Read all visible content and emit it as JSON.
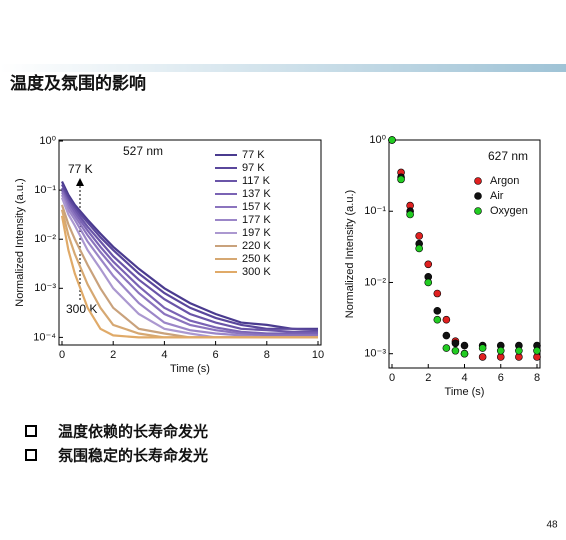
{
  "title": "温度及氛围的影响",
  "bullets": [
    "温度依赖的长寿命发光",
    "氛围稳定的长寿命发光"
  ],
  "page_number": "48",
  "chart_data": [
    {
      "type": "line",
      "log_y": true,
      "x_label": "Time (s)",
      "y_label": "Normalized Intensity (a.u.)",
      "annotations": [
        "527 nm",
        "77 K",
        "300 K"
      ],
      "x": [
        0,
        0.25,
        0.5,
        1,
        1.5,
        2,
        3,
        4,
        5,
        6,
        7,
        8,
        9,
        10
      ],
      "xlim": [
        0,
        10
      ],
      "xticks": [
        0,
        2,
        4,
        6,
        8,
        10
      ],
      "ylim": [
        7e-05,
        1.05
      ],
      "yticks": [
        {
          "value": 1,
          "label": "10⁰"
        },
        {
          "value": 0.1,
          "label": "10⁻¹"
        },
        {
          "value": 0.01,
          "label": "10⁻²"
        },
        {
          "value": 0.001,
          "label": "10⁻³"
        },
        {
          "value": 0.0001,
          "label": "10⁻⁴"
        }
      ],
      "series": [
        {
          "name": "77 K",
          "color": "#4a3b8f",
          "values": [
            0.15,
            0.08,
            0.05,
            0.025,
            0.013,
            0.007,
            0.0025,
            0.001,
            0.0005,
            0.0003,
            0.0002,
            0.00018,
            0.00015,
            0.00015
          ]
        },
        {
          "name": "97 K",
          "color": "#5a479c",
          "values": [
            0.13,
            0.07,
            0.045,
            0.022,
            0.011,
            0.006,
            0.002,
            0.0008,
            0.0004,
            0.00025,
            0.00018,
            0.00015,
            0.00015,
            0.00014
          ]
        },
        {
          "name": "117 K",
          "color": "#6a55a8",
          "values": [
            0.11,
            0.06,
            0.04,
            0.018,
            0.009,
            0.0045,
            0.0015,
            0.0006,
            0.0003,
            0.0002,
            0.00015,
            0.00014,
            0.00013,
            0.00013
          ]
        },
        {
          "name": "137 K",
          "color": "#7a63b4",
          "values": [
            0.1,
            0.055,
            0.035,
            0.015,
            0.007,
            0.0035,
            0.0011,
            0.0004,
            0.00022,
            0.00016,
            0.00013,
            0.00012,
            0.00012,
            0.00012
          ]
        },
        {
          "name": "157 K",
          "color": "#8b74be",
          "values": [
            0.09,
            0.048,
            0.03,
            0.012,
            0.0055,
            0.0027,
            0.0008,
            0.0003,
            0.00018,
            0.00014,
            0.00012,
            0.00011,
            0.00011,
            0.00011
          ]
        },
        {
          "name": "177 K",
          "color": "#9b86c8",
          "values": [
            0.08,
            0.04,
            0.025,
            0.009,
            0.004,
            0.0018,
            0.0005,
            0.0002,
            0.00014,
            0.00012,
            0.00011,
            0.0001,
            0.0001,
            0.0001
          ]
        },
        {
          "name": "197 K",
          "color": "#ab98d0",
          "values": [
            0.07,
            0.032,
            0.019,
            0.006,
            0.0025,
            0.001,
            0.0003,
            0.00015,
            0.00012,
            0.0001,
            0.0001,
            0.0001,
            0.0001,
            0.0001
          ]
        },
        {
          "name": "220 K",
          "color": "#c9a27c",
          "values": [
            0.05,
            0.02,
            0.01,
            0.003,
            0.001,
            0.0004,
            0.00015,
            0.00012,
            0.0001,
            0.0001,
            0.0001,
            0.0001,
            0.0001,
            0.0001
          ]
        },
        {
          "name": "250 K",
          "color": "#d6a872",
          "values": [
            0.04,
            0.012,
            0.005,
            0.0012,
            0.0004,
            0.00018,
            0.00012,
            0.0001,
            0.0001,
            0.0001,
            0.0001,
            0.0001,
            0.0001,
            0.0001
          ]
        },
        {
          "name": "300 K",
          "color": "#e0aa68",
          "values": [
            0.03,
            0.006,
            0.002,
            0.0004,
            0.00015,
            0.00011,
            0.0001,
            0.0001,
            0.0001,
            0.0001,
            0.0001,
            0.0001,
            0.0001,
            0.0001
          ]
        }
      ]
    },
    {
      "type": "scatter",
      "log_y": true,
      "x_label": "Time (s)",
      "y_label": "Normalized Intensity (a.u.)",
      "annotations": [
        "627 nm"
      ],
      "x": [
        0,
        0.5,
        1,
        1.5,
        2,
        2.5,
        3,
        3.5,
        4,
        5,
        6,
        7,
        8
      ],
      "xlim": [
        0,
        8
      ],
      "xticks": [
        0,
        2,
        4,
        6,
        8
      ],
      "ylim": [
        0.00063,
        1
      ],
      "yticks": [
        {
          "value": 1,
          "label": "10⁰"
        },
        {
          "value": 0.1,
          "label": "10⁻¹"
        },
        {
          "value": 0.01,
          "label": "10⁻²"
        },
        {
          "value": 0.001,
          "label": "10⁻³"
        }
      ],
      "series": [
        {
          "name": "Argon",
          "color": "#e02020",
          "values": [
            1,
            0.35,
            0.12,
            0.045,
            0.018,
            0.007,
            0.003,
            0.0015,
            0.001,
            0.0009,
            0.0009,
            0.0009,
            0.0009
          ]
        },
        {
          "name": "Air",
          "color": "#111111",
          "values": [
            1,
            0.3,
            0.1,
            0.035,
            0.012,
            0.004,
            0.0018,
            0.0014,
            0.0013,
            0.0013,
            0.0013,
            0.0013,
            0.0013
          ]
        },
        {
          "name": "Oxygen",
          "color": "#22cc22",
          "values": [
            1,
            0.28,
            0.09,
            0.03,
            0.01,
            0.003,
            0.0012,
            0.0011,
            0.001,
            0.0012,
            0.0011,
            0.0011,
            0.0011
          ]
        }
      ]
    }
  ]
}
